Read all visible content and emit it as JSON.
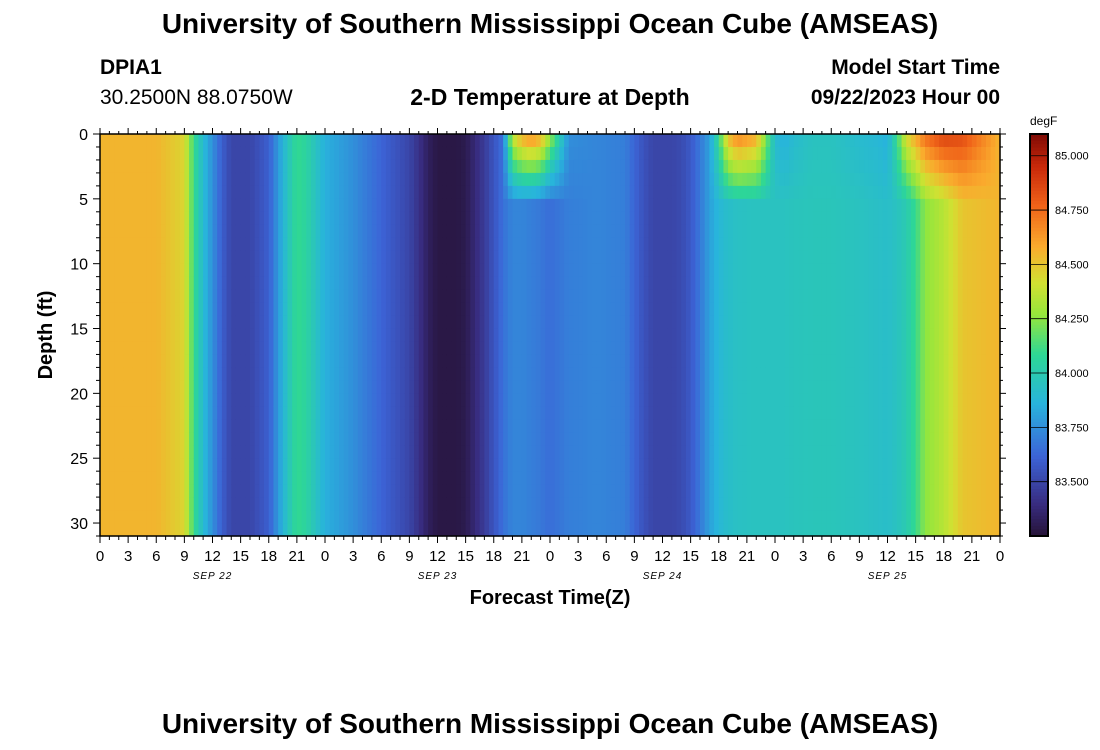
{
  "header": {
    "title": "University of Southern Mississippi Ocean Cube (AMSEAS)",
    "station": "DPIA1",
    "coords": "30.2500N  88.0750W",
    "plot_title": "2-D Temperature at Depth",
    "model_label": "Model Start Time",
    "model_time": "09/22/2023 Hour 00"
  },
  "footer": {
    "title": "University of Southern Mississippi Ocean Cube (AMSEAS)"
  },
  "chart_data": {
    "type": "heatmap",
    "title": "2-D Temperature at Depth",
    "xlabel": "Forecast Time(Z)",
    "ylabel": "Depth (ft)",
    "x_tick_labels": [
      "0",
      "3",
      "6",
      "9",
      "12",
      "15",
      "18",
      "21",
      "0",
      "3",
      "6",
      "9",
      "12",
      "15",
      "18",
      "21",
      "0",
      "3",
      "6",
      "9",
      "12",
      "15",
      "18",
      "21",
      "0",
      "3",
      "6",
      "9",
      "12",
      "15",
      "18",
      "21",
      "0"
    ],
    "x_hours": [
      0,
      3,
      6,
      9,
      12,
      15,
      18,
      21,
      24,
      27,
      30,
      33,
      36,
      39,
      42,
      45,
      48,
      51,
      54,
      57,
      60,
      63,
      66,
      69,
      72,
      75,
      78,
      81,
      84,
      87,
      90,
      93,
      96
    ],
    "date_labels": [
      {
        "label": "SEP 22",
        "hour": 12
      },
      {
        "label": "SEP 23",
        "hour": 36
      },
      {
        "label": "SEP 24",
        "hour": 60
      },
      {
        "label": "SEP 25",
        "hour": 84
      }
    ],
    "y_ticks": [
      0,
      5,
      10,
      15,
      20,
      25,
      30
    ],
    "ylim": [
      0,
      31
    ],
    "xlim": [
      0,
      96
    ],
    "colorbar": {
      "unit": "degF",
      "min": 83.25,
      "max": 85.1,
      "tick_labels": [
        "85.000",
        "84.750",
        "84.500",
        "84.250",
        "84.000",
        "83.750",
        "83.500"
      ],
      "ticks": [
        85.0,
        84.75,
        84.5,
        84.25,
        84.0,
        83.75,
        83.5
      ]
    },
    "surface_profile": {
      "hours": [
        0,
        6,
        9,
        10,
        11,
        12,
        13,
        14,
        16,
        18,
        19,
        20,
        21,
        22,
        24,
        27,
        30,
        33,
        34,
        35,
        36,
        37,
        38,
        39,
        40,
        41,
        42,
        43,
        44,
        45,
        46,
        47,
        48,
        50,
        53,
        56,
        57,
        58,
        59,
        60,
        61,
        62,
        63,
        64,
        65,
        66,
        67,
        68,
        70,
        72,
        73,
        74,
        76,
        78,
        81,
        83,
        84,
        85,
        86,
        87,
        88,
        90,
        92,
        96
      ],
      "values_degF": [
        84.55,
        84.55,
        84.45,
        84.1,
        83.9,
        83.75,
        83.6,
        83.5,
        83.5,
        83.6,
        83.78,
        83.95,
        84.1,
        84.05,
        83.85,
        83.75,
        83.62,
        83.5,
        83.42,
        83.33,
        83.28,
        83.28,
        83.28,
        83.3,
        83.38,
        83.46,
        83.56,
        83.66,
        84.4,
        84.6,
        84.68,
        84.6,
        84.3,
        83.75,
        83.72,
        83.7,
        83.62,
        83.55,
        83.5,
        83.5,
        83.5,
        83.52,
        83.58,
        83.68,
        83.8,
        84.1,
        84.55,
        84.7,
        84.6,
        83.9,
        83.85,
        83.9,
        83.95,
        83.95,
        83.9,
        83.88,
        83.85,
        84.1,
        84.45,
        84.6,
        84.75,
        84.88,
        84.85,
        84.55
      ]
    },
    "deep_profile": {
      "hours": [
        0,
        6,
        9,
        10,
        11,
        12,
        13,
        14,
        16,
        18,
        19,
        20,
        21,
        22,
        24,
        27,
        30,
        33,
        34,
        35,
        36,
        37,
        38,
        39,
        40,
        41,
        42,
        43,
        44,
        45,
        46,
        47,
        48,
        50,
        53,
        56,
        57,
        58,
        59,
        60,
        61,
        62,
        63,
        64,
        65,
        66,
        67,
        68,
        70,
        72,
        73,
        74,
        76,
        78,
        81,
        83,
        84,
        85,
        86,
        87,
        88,
        90,
        92,
        96
      ],
      "values_degF": [
        84.55,
        84.55,
        84.45,
        84.1,
        83.9,
        83.75,
        83.6,
        83.5,
        83.5,
        83.6,
        83.78,
        83.95,
        84.1,
        84.05,
        83.85,
        83.75,
        83.62,
        83.5,
        83.42,
        83.33,
        83.28,
        83.28,
        83.28,
        83.3,
        83.38,
        83.46,
        83.56,
        83.66,
        83.72,
        83.72,
        83.7,
        83.68,
        83.65,
        83.7,
        83.72,
        83.7,
        83.62,
        83.55,
        83.5,
        83.5,
        83.5,
        83.52,
        83.58,
        83.68,
        83.8,
        83.88,
        83.92,
        83.94,
        83.95,
        83.95,
        83.95,
        83.96,
        83.97,
        83.97,
        83.95,
        83.93,
        83.92,
        83.95,
        84.0,
        84.1,
        84.25,
        84.35,
        84.5,
        84.55
      ]
    }
  }
}
